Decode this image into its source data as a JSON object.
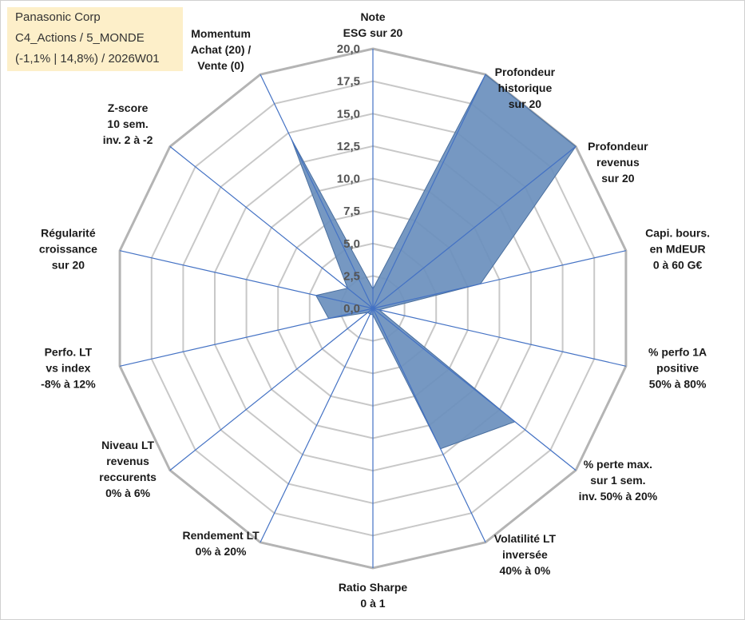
{
  "title_box": {
    "line1": "Panasonic Corp",
    "line2": "C4_Actions / 5_MONDE",
    "line3": "(-1,1% | 14,8%) / 2026W01"
  },
  "chart_data": {
    "type": "radar",
    "r_range": [
      0,
      20
    ],
    "r_ticks": [
      "0,0",
      "2,5",
      "5,0",
      "7,5",
      "10,0",
      "12,5",
      "15,0",
      "17,5",
      "20,0"
    ],
    "gridlines": true,
    "axes": [
      {
        "label": [
          "Note",
          "ESG sur 20"
        ],
        "value": 1.5
      },
      {
        "label": [
          "Profondeur",
          "historique",
          "sur 20"
        ],
        "value": 20
      },
      {
        "label": [
          "Profondeur",
          "revenus",
          "sur 20"
        ],
        "value": 20
      },
      {
        "label": [
          "Capi. bours.",
          "en MdEUR",
          "0 à 60 G€"
        ],
        "value": 8.5
      },
      {
        "label": [
          "% perfo 1A",
          "positive",
          "50% à 80%"
        ],
        "value": 0.5
      },
      {
        "label": [
          "% perte max.",
          "sur 1 sem.",
          "inv. 50% à 20%"
        ],
        "value": 14
      },
      {
        "label": [
          "Volatilité LT",
          "inversée",
          "40% à 0%"
        ],
        "value": 12
      },
      {
        "label": [
          "Ratio Sharpe",
          "0 à 1"
        ],
        "value": 0.5
      },
      {
        "label": [
          "Rendement LT",
          "0% à 20%"
        ],
        "value": 0.5
      },
      {
        "label": [
          "Niveau LT",
          "revenus",
          "reccurents",
          "0% à 6%"
        ],
        "value": 0.5
      },
      {
        "label": [
          "Perfo. LT",
          "vs index",
          "-8% à 12%"
        ],
        "value": 3.5
      },
      {
        "label": [
          "Régularité",
          "croissance",
          "sur 20"
        ],
        "value": 4.5
      },
      {
        "label": [
          "Z-score",
          "10 sem.",
          "inv. 2 à -2"
        ],
        "value": 2.5
      },
      {
        "label": [
          "Momentum",
          "Achat (20) /",
          "Vente (0)"
        ],
        "value": 14.5
      }
    ],
    "colors": {
      "fill": "#6a8fbd",
      "stroke": "#4a6f9e",
      "axis": "#4472c4",
      "grid": "#c8c8c8",
      "outer": "#b4b4b4"
    }
  }
}
